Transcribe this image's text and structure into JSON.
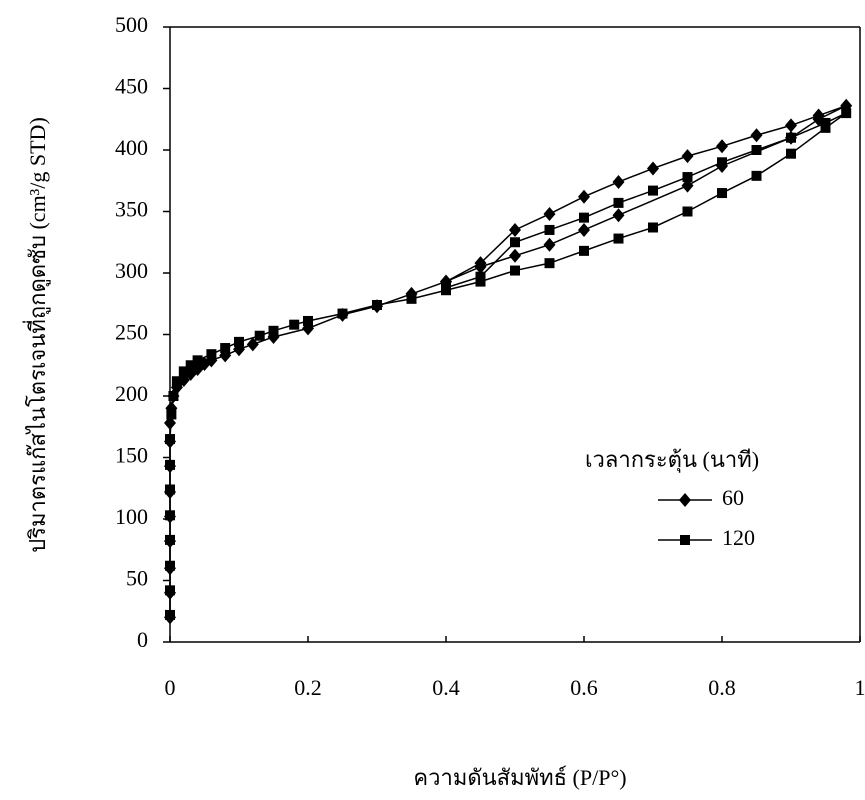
{
  "chart_data": {
    "type": "line",
    "y_label": "ปริมาตรแก๊สไนโตรเจนที่ถูกดูดซับ (cm³/g STD)",
    "x_label": "ความดันสัมพัทธ์ (P/P°)",
    "legend_title": "เวลากระตุ้น (นาที)",
    "legend_position": "right",
    "xlim": [
      0,
      1
    ],
    "xticks": [
      0,
      0.2,
      0.4,
      0.6,
      0.8,
      1
    ],
    "ylim": [
      0,
      500
    ],
    "yticks": [
      0,
      50,
      100,
      150,
      200,
      250,
      300,
      350,
      400,
      450,
      500
    ],
    "grid": false,
    "series": [
      {
        "name": "60",
        "color": "#000000",
        "marker": "diamond",
        "x": [
          0,
          0,
          0,
          0,
          0,
          0,
          0,
          0,
          0,
          0.002,
          0.005,
          0.01,
          0.02,
          0.03,
          0.04,
          0.05,
          0.06,
          0.08,
          0.1,
          0.12,
          0.15,
          0.2,
          0.25,
          0.3,
          0.35,
          0.4,
          0.45,
          0.5,
          0.55,
          0.6,
          0.65,
          0.75,
          0.8,
          0.9,
          0.94,
          0.98,
          0.94,
          0.9,
          0.85,
          0.8,
          0.75,
          0.7,
          0.65,
          0.6,
          0.55,
          0.5,
          0.45,
          0.4
        ],
        "values": [
          20,
          40,
          60,
          82,
          102,
          122,
          143,
          163,
          178,
          190,
          200,
          207,
          213,
          218,
          222,
          226,
          229,
          233,
          238,
          242,
          248,
          255,
          266,
          273,
          283,
          293,
          305,
          314,
          323,
          335,
          347,
          371,
          387,
          410,
          425,
          436,
          428,
          420,
          412,
          403,
          395,
          385,
          374,
          362,
          348,
          335,
          308,
          293
        ]
      },
      {
        "name": "120",
        "color": "#000000",
        "marker": "square",
        "x": [
          0,
          0,
          0,
          0,
          0,
          0,
          0,
          0,
          0.002,
          0.005,
          0.01,
          0.02,
          0.03,
          0.04,
          0.06,
          0.08,
          0.1,
          0.13,
          0.15,
          0.18,
          0.2,
          0.25,
          0.3,
          0.35,
          0.4,
          0.45,
          0.5,
          0.55,
          0.6,
          0.65,
          0.7,
          0.75,
          0.8,
          0.85,
          0.9,
          0.95,
          0.98,
          0.95,
          0.9,
          0.85,
          0.8,
          0.75,
          0.7,
          0.65,
          0.6,
          0.55,
          0.5,
          0.45,
          0.4
        ],
        "values": [
          22,
          42,
          62,
          83,
          103,
          124,
          144,
          165,
          185,
          200,
          212,
          220,
          225,
          229,
          234,
          239,
          244,
          249,
          253,
          258,
          261,
          267,
          274,
          279,
          286,
          293,
          302,
          308,
          318,
          328,
          337,
          350,
          365,
          379,
          397,
          418,
          430,
          422,
          410,
          400,
          390,
          378,
          367,
          357,
          345,
          335,
          325,
          297,
          288
        ]
      }
    ]
  }
}
